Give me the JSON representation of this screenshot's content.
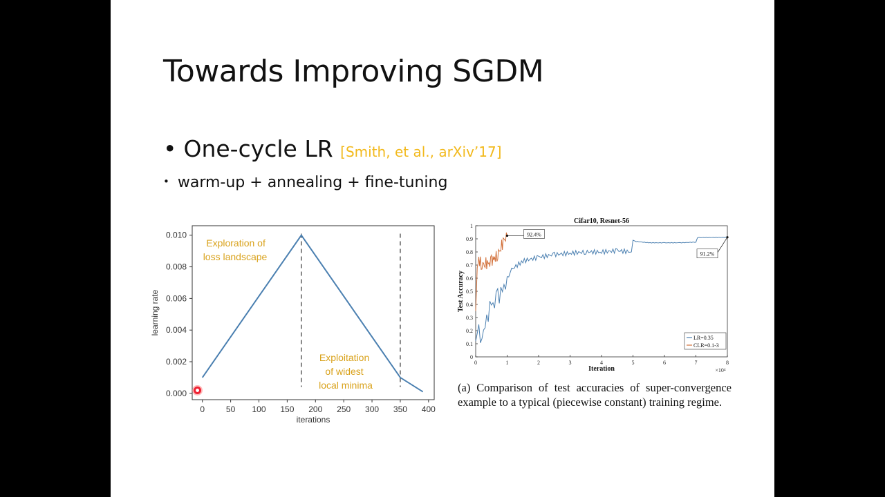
{
  "slide": {
    "title": "Towards Improving SGDM",
    "bullet1": "One-cycle LR",
    "bullet1_citation": "[Smith, et al., arXiv’17]",
    "bullet2": "warm-up + annealing + fine-tuning"
  },
  "colors": {
    "citation": "#f2b91c",
    "annotation": "#d9a21b",
    "lr_line": "#4a7fb0",
    "clr_line": "#d2703a"
  },
  "chart_data": [
    {
      "type": "line",
      "xlabel": "iterations",
      "ylabel": "learning rate",
      "xticks": [
        "0",
        "50",
        "100",
        "150",
        "200",
        "250",
        "300",
        "350",
        "400"
      ],
      "yticks": [
        "0.000",
        "0.002",
        "0.004",
        "0.006",
        "0.008",
        "0.010"
      ],
      "xlim": [
        -18,
        410
      ],
      "ylim": [
        -0.0004,
        0.0106
      ],
      "x": [
        0,
        175,
        350,
        390
      ],
      "y": [
        0.001,
        0.01,
        0.001,
        0.0001
      ],
      "vlines": [
        175,
        350
      ],
      "annotations": [
        {
          "lines": [
            "Exploration of",
            "loss landscape"
          ]
        },
        {
          "lines": [
            "Exploitation",
            "of widest",
            "local minima"
          ]
        }
      ]
    },
    {
      "type": "line",
      "title": "Cifar10, Resnet-56",
      "xlabel": "Iteration",
      "ylabel": "Test Accuracy",
      "xticks": [
        "0",
        "1",
        "2",
        "3",
        "4",
        "5",
        "6",
        "7",
        "8"
      ],
      "yticks": [
        "0",
        "0.1",
        "0.2",
        "0.3",
        "0.4",
        "0.5",
        "0.6",
        "0.7",
        "0.8",
        "0.9",
        "1"
      ],
      "xlim": [
        0,
        8
      ],
      "ylim": [
        0,
        1
      ],
      "x_multiplier": "×10⁴",
      "series": [
        {
          "name": "LR=0.35",
          "color": "#4a7fb0",
          "x": [
            0,
            0.1,
            0.2,
            0.3,
            0.4,
            0.5,
            0.7,
            0.9,
            1.1,
            1.5,
            2,
            2.5,
            3,
            3.5,
            4,
            4.5,
            4.95,
            5.0,
            5.1,
            5.5,
            6,
            6.5,
            7,
            7.05,
            7.2,
            8
          ],
          "y": [
            0.12,
            0.18,
            0.14,
            0.27,
            0.33,
            0.38,
            0.45,
            0.53,
            0.66,
            0.73,
            0.76,
            0.78,
            0.79,
            0.8,
            0.8,
            0.81,
            0.8,
            0.89,
            0.88,
            0.87,
            0.87,
            0.87,
            0.875,
            0.91,
            0.91,
            0.912
          ]
        },
        {
          "name": "CLR=0.1-3",
          "color": "#d2703a",
          "x": [
            0,
            0.05,
            0.1,
            0.2,
            0.3,
            0.4,
            0.5,
            0.6,
            0.7,
            0.8,
            0.9,
            1.0
          ],
          "y": [
            0.35,
            0.68,
            0.74,
            0.7,
            0.72,
            0.7,
            0.73,
            0.75,
            0.78,
            0.84,
            0.88,
            0.924
          ]
        }
      ],
      "annotations": [
        "92.4%",
        "91.2%"
      ]
    }
  ],
  "caption": "(a) Comparison of test accuracies of super-convergence example to a typical (piecewise constant) training regime."
}
